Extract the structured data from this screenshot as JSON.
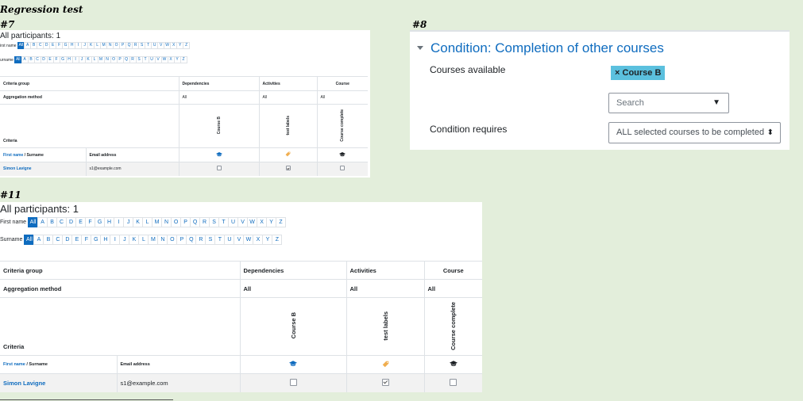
{
  "heading": "Regression test",
  "sections": {
    "s7": "#7",
    "s8": "#8",
    "s11": "#11"
  },
  "report": {
    "participants_label": "All participants: 1",
    "firstname_label": "First name",
    "firstname_label_cropped": "irst name",
    "surname_label": "Surname",
    "surname_label_cropped": "urname",
    "letters": [
      "All",
      "A",
      "B",
      "C",
      "D",
      "E",
      "F",
      "G",
      "H",
      "I",
      "J",
      "K",
      "L",
      "M",
      "N",
      "O",
      "P",
      "Q",
      "R",
      "S",
      "T",
      "U",
      "V",
      "W",
      "X",
      "Y",
      "Z"
    ],
    "criteria_group": "Criteria group",
    "dependencies": "Dependencies",
    "activities": "Activities",
    "course": "Course",
    "aggregation_method": "Aggregation method",
    "all": "All",
    "criteria": "Criteria",
    "col_course_b": "Course B",
    "col_test_labels": "test labels",
    "col_course_complete": "Course complete",
    "firstname_link": "First name",
    "surname_sep": " / Surname",
    "email_header": "Email address",
    "user_name": "Simon Lavigne",
    "user_email": "s1@example.com",
    "icon_colors": {
      "mortar": "#0f6cbf",
      "tag": "#f0ad4e",
      "mortar_dark": "#1d2125"
    }
  },
  "condition": {
    "title": "Condition: Completion of other courses",
    "courses_available_label": "Courses available",
    "selected_course": "Course B",
    "remove_mark": "×",
    "search_placeholder": "Search",
    "dropdown_arrow": "▼",
    "condition_requires_label": "Condition requires",
    "condition_requires_value": "ALL selected courses to be completed",
    "select_arrows": "⬍"
  }
}
